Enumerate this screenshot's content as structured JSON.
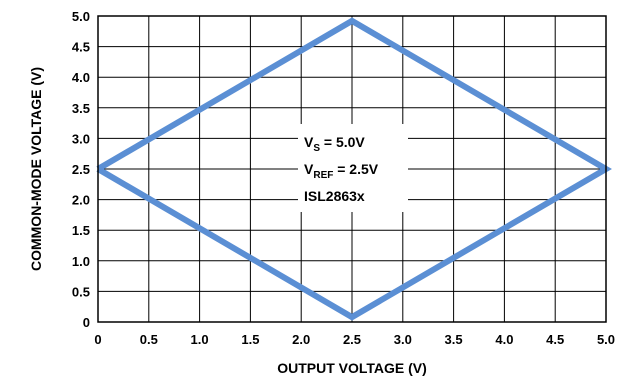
{
  "chart_data": {
    "type": "line",
    "xlabel": "OUTPUT VOLTAGE (V)",
    "ylabel": "COMMON-MODE VOLTAGE (V)",
    "xlim": [
      0,
      5.0
    ],
    "ylim": [
      0,
      5.0
    ],
    "x_ticks": [
      "0",
      "0.5",
      "1.0",
      "1.5",
      "2.0",
      "2.5",
      "3.0",
      "3.5",
      "4.0",
      "4.5",
      "5.0"
    ],
    "y_ticks": [
      "0",
      "0.5",
      "1.0",
      "1.5",
      "2.0",
      "2.5",
      "3.0",
      "3.5",
      "4.0",
      "4.5",
      "5.0"
    ],
    "grid": true,
    "series": [
      {
        "color": "#5b8fd4",
        "x": [
          0,
          2.5,
          5.0,
          2.5,
          0
        ],
        "y": [
          2.5,
          4.92,
          2.5,
          0.08,
          2.5
        ]
      }
    ],
    "annotation": {
      "lines": [
        {
          "main": "V",
          "sub": "S",
          "rest": " = 5.0V"
        },
        {
          "main": "V",
          "sub": "REF",
          "rest": " = 2.5V"
        },
        {
          "main": "ISL2863x",
          "sub": "",
          "rest": ""
        }
      ]
    }
  }
}
